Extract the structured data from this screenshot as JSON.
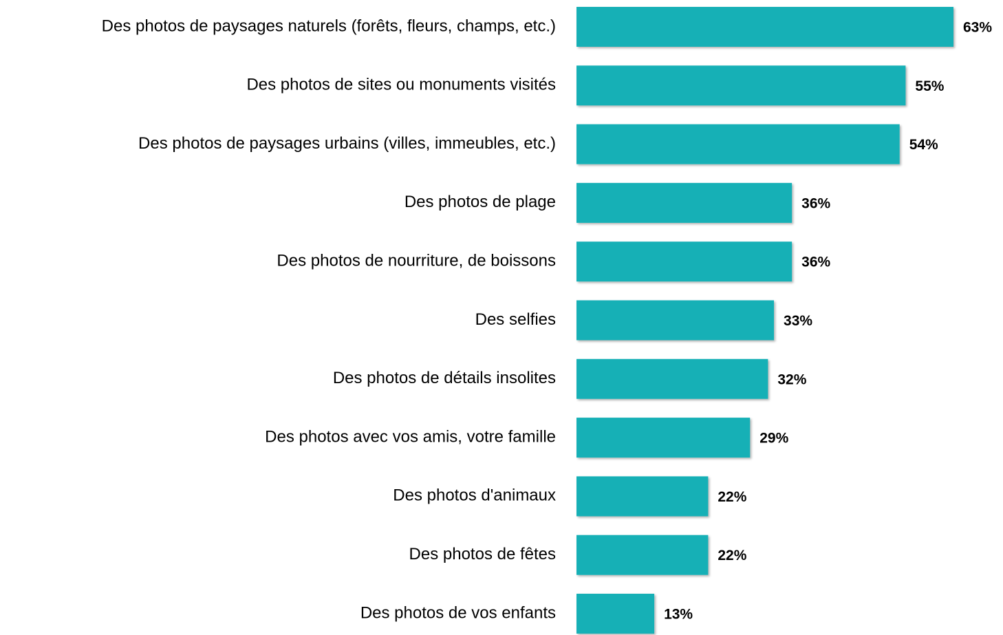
{
  "chart_data": {
    "type": "bar",
    "orientation": "horizontal",
    "categories": [
      "Des photos de paysages naturels (forêts, fleurs, champs, etc.)",
      "Des photos de sites ou monuments visités",
      "Des photos de paysages urbains (villes, immeubles, etc.)",
      "Des photos de plage",
      "Des photos de nourriture, de boissons",
      "Des selfies",
      "Des photos de détails insolites",
      "Des photos avec vos amis, votre famille",
      "Des photos d'animaux",
      "Des photos de fêtes",
      "Des photos de vos enfants"
    ],
    "values": [
      63,
      55,
      54,
      36,
      36,
      33,
      32,
      29,
      22,
      22,
      13
    ],
    "value_labels": [
      "63%",
      "55%",
      "54%",
      "36%",
      "36%",
      "33%",
      "32%",
      "29%",
      "22%",
      "22%",
      "13%"
    ],
    "color": "#14b0b6"
  }
}
